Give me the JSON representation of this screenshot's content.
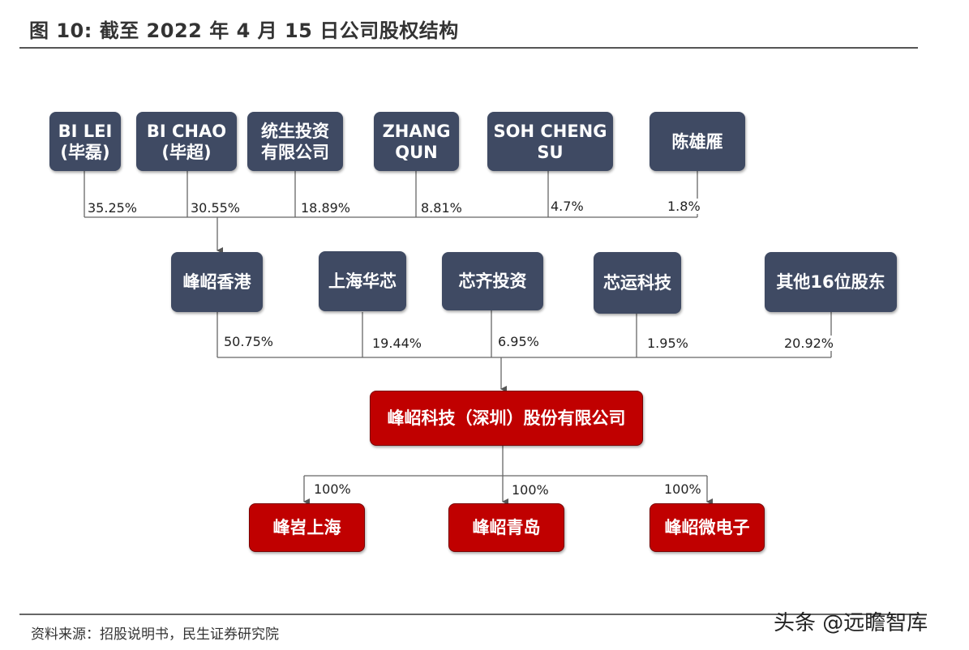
{
  "title": "图 10: 截至 2022 年 4 月 15 日公司股权结构",
  "source": "资料来源：招股说明书，民生证券研究院",
  "watermark": "头条 @远瞻智库",
  "shareholders_top": [
    {
      "name": "BI LEI\n(毕磊)",
      "pct": "35.25%"
    },
    {
      "name": "BI CHAO\n(毕超)",
      "pct": "30.55%"
    },
    {
      "name": "统生投资\n有限公司",
      "pct": "18.89%"
    },
    {
      "name": "ZHANG\nQUN",
      "pct": "8.81%"
    },
    {
      "name": "SOH CHENG\nSU",
      "pct": "4.7%"
    },
    {
      "name": "陈雄雁",
      "pct": "1.8%"
    }
  ],
  "shareholders_mid": [
    {
      "name": "峰岹香港",
      "pct": "50.75%"
    },
    {
      "name": "上海华芯",
      "pct": "19.44%"
    },
    {
      "name": "芯齐投资",
      "pct": "6.95%"
    },
    {
      "name": "芯运科技",
      "pct": "1.95%"
    },
    {
      "name": "其他16位股东",
      "pct": "20.92%"
    }
  ],
  "company": "峰岹科技（深圳）股份有限公司",
  "subsidiaries": [
    {
      "name": "峰岧上海",
      "pct": "100%"
    },
    {
      "name": "峰岹青岛",
      "pct": "100%"
    },
    {
      "name": "峰岹微电子",
      "pct": "100%"
    }
  ],
  "colors": {
    "box_dark": "#3f4a63",
    "box_red": "#c00000",
    "line": "#555555"
  }
}
